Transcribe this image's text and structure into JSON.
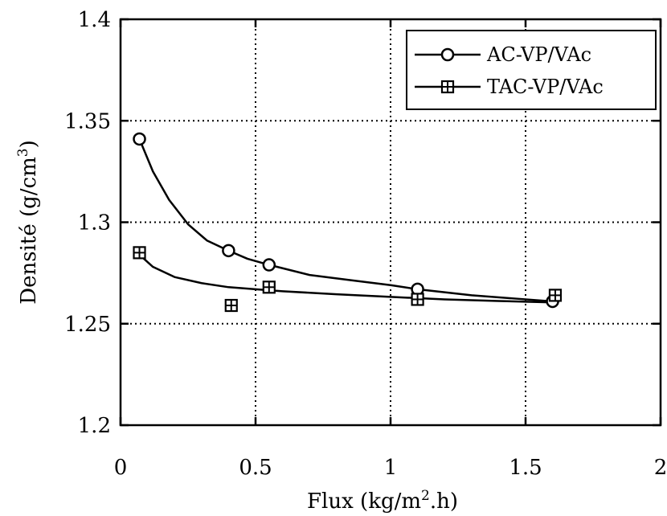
{
  "chart_data": {
    "type": "scatter",
    "title": "",
    "xlabel": "Flux  (kg/m",
    "xlabel_sup": "2",
    "xlabel_end": ".h)",
    "ylabel": "Densité  (g/cm",
    "ylabel_sup": "3",
    "ylabel_end": ")",
    "xlim": [
      0,
      2
    ],
    "ylim": [
      1.2,
      1.4
    ],
    "xticks": [
      0,
      0.5,
      1,
      1.5,
      2
    ],
    "xtick_labels": [
      "0",
      "0.5",
      "1",
      "1.5",
      "2"
    ],
    "yticks": [
      1.2,
      1.25,
      1.3,
      1.35,
      1.4
    ],
    "ytick_labels": [
      "1.2",
      "1.25",
      "1.3",
      "1.35",
      "1.4"
    ],
    "grid": true,
    "legend_position": "top-right",
    "series": [
      {
        "name": "AC-VP/VAc",
        "marker": "circle",
        "line": "fitted curve",
        "color": "#000000",
        "x": [
          0.07,
          0.4,
          0.55,
          1.1,
          1.6
        ],
        "y": [
          1.341,
          1.286,
          1.279,
          1.267,
          1.261
        ],
        "curve_x": [
          0.07,
          0.12,
          0.18,
          0.25,
          0.32,
          0.4,
          0.47,
          0.55,
          0.7,
          0.85,
          1.0,
          1.1,
          1.3,
          1.45,
          1.6
        ],
        "curve_y": [
          1.341,
          1.325,
          1.311,
          1.299,
          1.291,
          1.286,
          1.282,
          1.279,
          1.274,
          1.2715,
          1.269,
          1.267,
          1.264,
          1.2625,
          1.261
        ]
      },
      {
        "name": "TAC-VP/VAc",
        "marker": "square-cross",
        "line": "fitted curve",
        "color": "#000000",
        "x": [
          0.07,
          0.41,
          0.55,
          1.1,
          1.61
        ],
        "y": [
          1.285,
          1.259,
          1.268,
          1.262,
          1.264
        ],
        "curve_x": [
          0.07,
          0.12,
          0.2,
          0.3,
          0.4,
          0.5,
          0.6,
          0.8,
          1.0,
          1.2,
          1.4,
          1.6
        ],
        "curve_y": [
          1.284,
          1.278,
          1.273,
          1.27,
          1.268,
          1.267,
          1.266,
          1.2645,
          1.2632,
          1.262,
          1.2612,
          1.2605
        ]
      }
    ]
  }
}
